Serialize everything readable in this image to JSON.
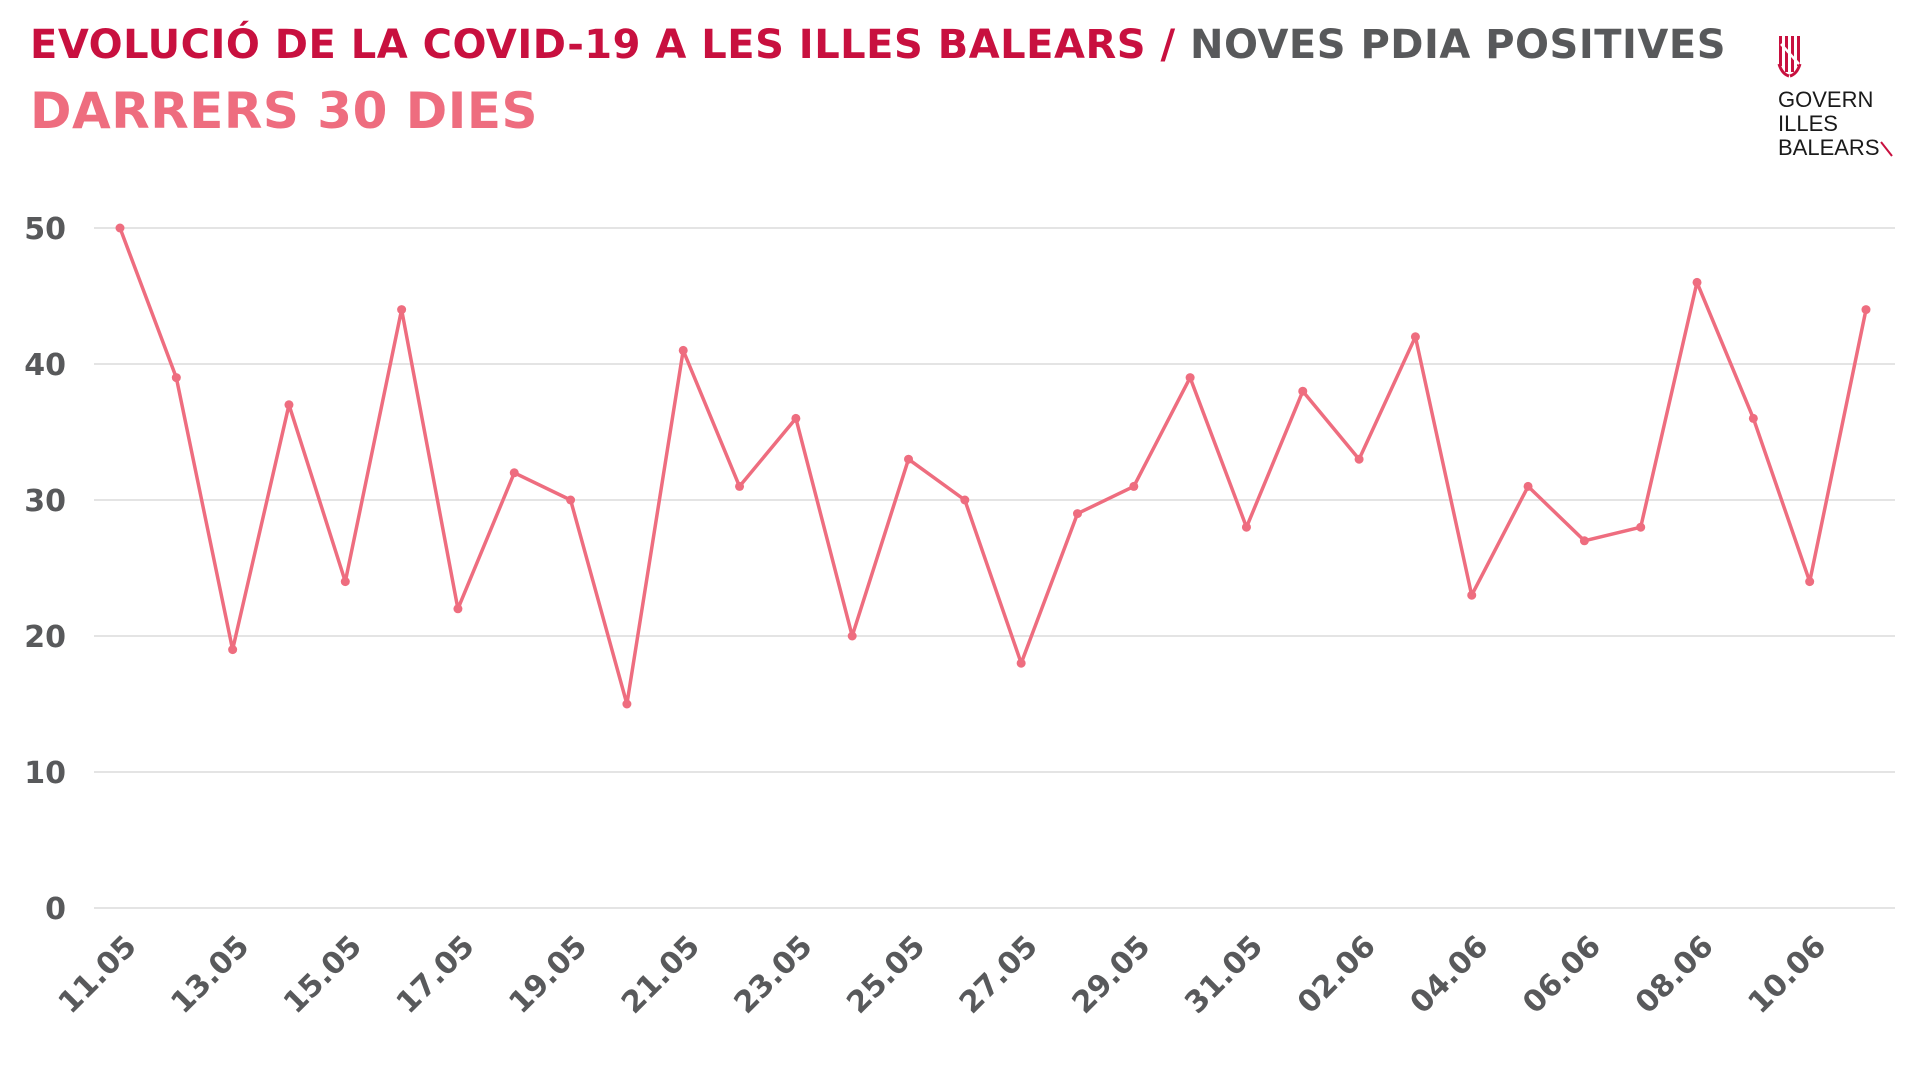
{
  "header": {
    "title_main": "EVOLUCIÓ DE LA COVID-19 A LES ILLES BALEARS",
    "title_separator": " / ",
    "title_rest": "NOVES PDIA POSITIVES",
    "subtitle": "DARRERS 30 DIES"
  },
  "logo": {
    "line1": "GOVERN",
    "line2": "ILLES",
    "line3": "BALEARS",
    "icon": "govern-illes-balears-crest-icon"
  },
  "colors": {
    "title": "#c8103f",
    "title_secondary": "#58595b",
    "subtitle": "#ee6d7f",
    "line": "#ee6d7f",
    "grid": "#dcdcdc",
    "axis_text": "#58595b"
  },
  "chart_data": {
    "type": "line",
    "x": [
      "11.05",
      "12.05",
      "13.05",
      "14.05",
      "15.05",
      "16.05",
      "17.05",
      "18.05",
      "19.05",
      "20.05",
      "21.05",
      "22.05",
      "23.05",
      "24.05",
      "25.05",
      "26.05",
      "27.05",
      "28.05",
      "29.05",
      "30.05",
      "31.05",
      "01.06",
      "02.06",
      "03.06",
      "04.06",
      "05.06",
      "06.06",
      "07.06",
      "08.06",
      "09.06",
      "10.06",
      "11.06"
    ],
    "tick_labels": [
      "11.05",
      "13.05",
      "15.05",
      "17.05",
      "19.05",
      "21.05",
      "23.05",
      "25.05",
      "27.05",
      "29.05",
      "31.05",
      "02.06",
      "04.06",
      "06.06",
      "08.06",
      "10.06"
    ],
    "series": [
      {
        "values": [
          50,
          39,
          19,
          37,
          24,
          44,
          22,
          32,
          30,
          15,
          41,
          31,
          36,
          20,
          33,
          30,
          18,
          29,
          31,
          39,
          28,
          38,
          33,
          42,
          23,
          31,
          27,
          28,
          46,
          36,
          24,
          44
        ]
      }
    ],
    "ylim": [
      0,
      50
    ],
    "yticks": [
      0,
      10,
      20,
      30,
      40,
      50
    ],
    "grid": "horizontal",
    "xlabel": "",
    "ylabel": "",
    "legend": "none"
  }
}
